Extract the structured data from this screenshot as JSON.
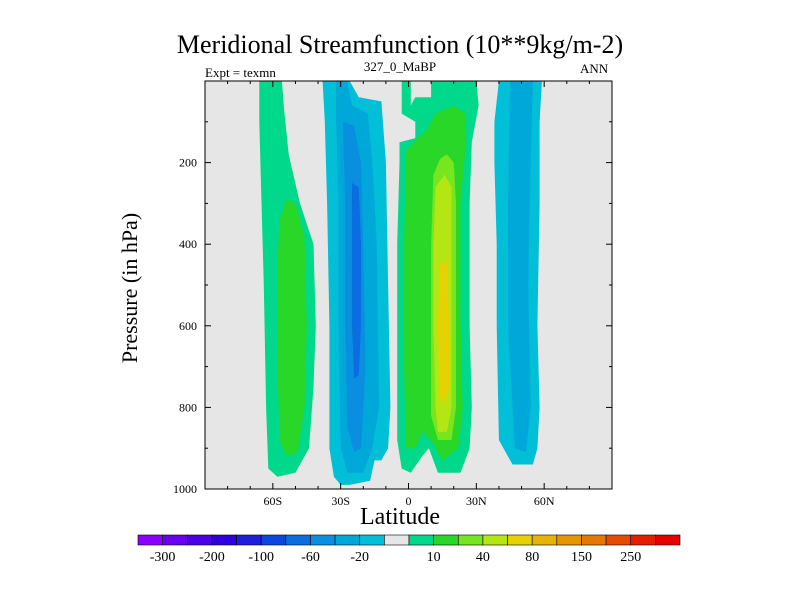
{
  "chart_data": {
    "type": "heatmap",
    "title": "Meridional Streamfunction (10**9kg/m-2)",
    "left_subtitle": "Expt = texmn",
    "center_subtitle": "327_0_MaBP",
    "right_subtitle": "ANN",
    "xlabel": "Latitude",
    "ylabel": "Pressure (in hPa)",
    "xlim": [
      -90,
      90
    ],
    "ylim": [
      1000,
      0
    ],
    "x_ticks": [
      -60,
      -30,
      0,
      30,
      60
    ],
    "x_tick_labels": [
      "60S",
      "30S",
      "0",
      "30N",
      "60N"
    ],
    "y_ticks": [
      200,
      400,
      600,
      800,
      1000
    ],
    "y_tick_labels": [
      "200",
      "400",
      "600",
      "800",
      "1000"
    ],
    "colorbar": {
      "colors": [
        "#8c00ff",
        "#6a00f0",
        "#4b00e6",
        "#2f00de",
        "#1e1edc",
        "#0a46e0",
        "#0a6ee0",
        "#0a8ee0",
        "#00a8d9",
        "#00bfd6",
        "#e6e6e6",
        "#00d98c",
        "#28d728",
        "#78e61e",
        "#b4e614",
        "#e6d200",
        "#e6b400",
        "#e69600",
        "#e67800",
        "#e64b00",
        "#e61e00",
        "#e60000"
      ],
      "labels": [
        "-300",
        "-200",
        "-100",
        "-60",
        "-20",
        "10",
        "40",
        "80",
        "150",
        "250"
      ]
    },
    "contour_regions": [
      {
        "level": 10,
        "color": "#00d98c",
        "polygon": [
          [
            -66,
            0
          ],
          [
            -56,
            0
          ],
          [
            -55,
            70
          ],
          [
            -53,
            180
          ],
          [
            -48,
            300
          ],
          [
            -42,
            400
          ],
          [
            -41,
            600
          ],
          [
            -42,
            750
          ],
          [
            -44,
            900
          ],
          [
            -50,
            960
          ],
          [
            -58,
            970
          ],
          [
            -62,
            950
          ],
          [
            -63,
            800
          ],
          [
            -64,
            500
          ],
          [
            -65,
            300
          ],
          [
            -66,
            100
          ]
        ]
      },
      {
        "level": 40,
        "color": "#28d728",
        "polygon": [
          [
            -54,
            290
          ],
          [
            -50,
            300
          ],
          [
            -46,
            380
          ],
          [
            -45,
            600
          ],
          [
            -46,
            800
          ],
          [
            -49,
            910
          ],
          [
            -54,
            920
          ],
          [
            -57,
            880
          ],
          [
            -58,
            700
          ],
          [
            -58,
            450
          ],
          [
            -57,
            340
          ]
        ]
      },
      {
        "level": -10,
        "color": "#00bfd6",
        "polygon": [
          [
            -38,
            0
          ],
          [
            -26,
            0
          ],
          [
            -22,
            40
          ],
          [
            -12,
            50
          ],
          [
            -10,
            200
          ],
          [
            -9,
            500
          ],
          [
            -8,
            800
          ],
          [
            -9,
            900
          ],
          [
            -12,
            930
          ],
          [
            -15,
            930
          ],
          [
            -17,
            980
          ],
          [
            -26,
            990
          ],
          [
            -30,
            990
          ],
          [
            -33,
            970
          ],
          [
            -35,
            900
          ],
          [
            -35,
            600
          ],
          [
            -36,
            300
          ],
          [
            -37,
            100
          ]
        ]
      },
      {
        "level": -20,
        "color": "#00a8d9",
        "polygon": [
          [
            -32,
            0
          ],
          [
            -27,
            0
          ],
          [
            -25,
            60
          ],
          [
            -18,
            80
          ],
          [
            -16,
            200
          ],
          [
            -14,
            400
          ],
          [
            -13,
            800
          ],
          [
            -16,
            900
          ],
          [
            -20,
            960
          ],
          [
            -27,
            960
          ],
          [
            -30,
            900
          ],
          [
            -31,
            600
          ],
          [
            -31,
            300
          ],
          [
            -32,
            100
          ]
        ]
      },
      {
        "level": -40,
        "color": "#0a8ee0",
        "polygon": [
          [
            -29,
            100
          ],
          [
            -24,
            110
          ],
          [
            -21,
            200
          ],
          [
            -20,
            400
          ],
          [
            -19,
            700
          ],
          [
            -21,
            900
          ],
          [
            -24,
            910
          ],
          [
            -27,
            850
          ],
          [
            -28,
            600
          ],
          [
            -28,
            300
          ]
        ]
      },
      {
        "level": -60,
        "color": "#0a6ee0",
        "polygon": [
          [
            -25,
            250
          ],
          [
            -22,
            260
          ],
          [
            -21,
            400
          ],
          [
            -21,
            600
          ],
          [
            -22,
            720
          ],
          [
            -24,
            730
          ],
          [
            -25,
            600
          ],
          [
            -25,
            400
          ]
        ]
      },
      {
        "level": 10,
        "color": "#00d98c",
        "polygon": [
          [
            -3,
            0
          ],
          [
            1,
            0
          ],
          [
            1,
            60
          ],
          [
            3,
            40
          ],
          [
            10,
            40
          ],
          [
            10,
            0
          ],
          [
            30,
            0
          ],
          [
            31,
            60
          ],
          [
            28,
            150
          ],
          [
            27,
            300
          ],
          [
            27,
            600
          ],
          [
            28,
            800
          ],
          [
            27,
            900
          ],
          [
            23,
            960
          ],
          [
            13,
            960
          ],
          [
            9,
            900
          ],
          [
            6,
            920
          ],
          [
            1,
            960
          ],
          [
            -3,
            950
          ],
          [
            -5,
            880
          ],
          [
            -5,
            600
          ],
          [
            -5,
            400
          ],
          [
            -4,
            200
          ],
          [
            -4,
            150
          ],
          [
            3,
            140
          ],
          [
            3,
            100
          ],
          [
            -3,
            80
          ]
        ]
      },
      {
        "level": 40,
        "color": "#28d728",
        "polygon": [
          [
            -1,
            170
          ],
          [
            4,
            140
          ],
          [
            8,
            120
          ],
          [
            12,
            80
          ],
          [
            20,
            60
          ],
          [
            25,
            80
          ],
          [
            25,
            180
          ],
          [
            23,
            300
          ],
          [
            23,
            600
          ],
          [
            24,
            800
          ],
          [
            22,
            900
          ],
          [
            15,
            930
          ],
          [
            10,
            880
          ],
          [
            6,
            860
          ],
          [
            3,
            900
          ],
          [
            -1,
            900
          ],
          [
            -2,
            700
          ],
          [
            -2,
            400
          ]
        ]
      },
      {
        "level": 60,
        "color": "#78e61e",
        "polygon": [
          [
            11,
            230
          ],
          [
            14,
            190
          ],
          [
            17,
            180
          ],
          [
            20,
            200
          ],
          [
            21,
            300
          ],
          [
            21,
            600
          ],
          [
            21,
            800
          ],
          [
            19,
            880
          ],
          [
            13,
            880
          ],
          [
            10,
            820
          ],
          [
            10,
            600
          ],
          [
            10,
            400
          ]
        ]
      },
      {
        "level": 80,
        "color": "#b4e614",
        "polygon": [
          [
            12,
            260
          ],
          [
            16,
            230
          ],
          [
            19,
            260
          ],
          [
            19,
            400
          ],
          [
            19,
            600
          ],
          [
            19,
            800
          ],
          [
            17,
            860
          ],
          [
            13,
            860
          ],
          [
            12,
            800
          ],
          [
            11,
            600
          ],
          [
            11,
            400
          ]
        ]
      },
      {
        "level": 100,
        "color": "#e6d200",
        "polygon": [
          [
            14,
            450
          ],
          [
            17,
            440
          ],
          [
            18,
            600
          ],
          [
            18,
            750
          ],
          [
            16,
            790
          ],
          [
            14,
            780
          ],
          [
            13,
            600
          ]
        ]
      },
      {
        "level": -10,
        "color": "#00bfd6",
        "polygon": [
          [
            40,
            0
          ],
          [
            59,
            0
          ],
          [
            58,
            100
          ],
          [
            58,
            300
          ],
          [
            57,
            600
          ],
          [
            58,
            800
          ],
          [
            57,
            900
          ],
          [
            55,
            940
          ],
          [
            46,
            940
          ],
          [
            40,
            880
          ],
          [
            39,
            600
          ],
          [
            39,
            400
          ],
          [
            38,
            200
          ],
          [
            38,
            100
          ]
        ]
      },
      {
        "level": -20,
        "color": "#00a8d9",
        "polygon": [
          [
            45,
            0
          ],
          [
            55,
            0
          ],
          [
            54,
            200
          ],
          [
            53,
            500
          ],
          [
            54,
            800
          ],
          [
            52,
            910
          ],
          [
            47,
            900
          ],
          [
            44,
            600
          ],
          [
            44,
            300
          ]
        ]
      }
    ]
  }
}
